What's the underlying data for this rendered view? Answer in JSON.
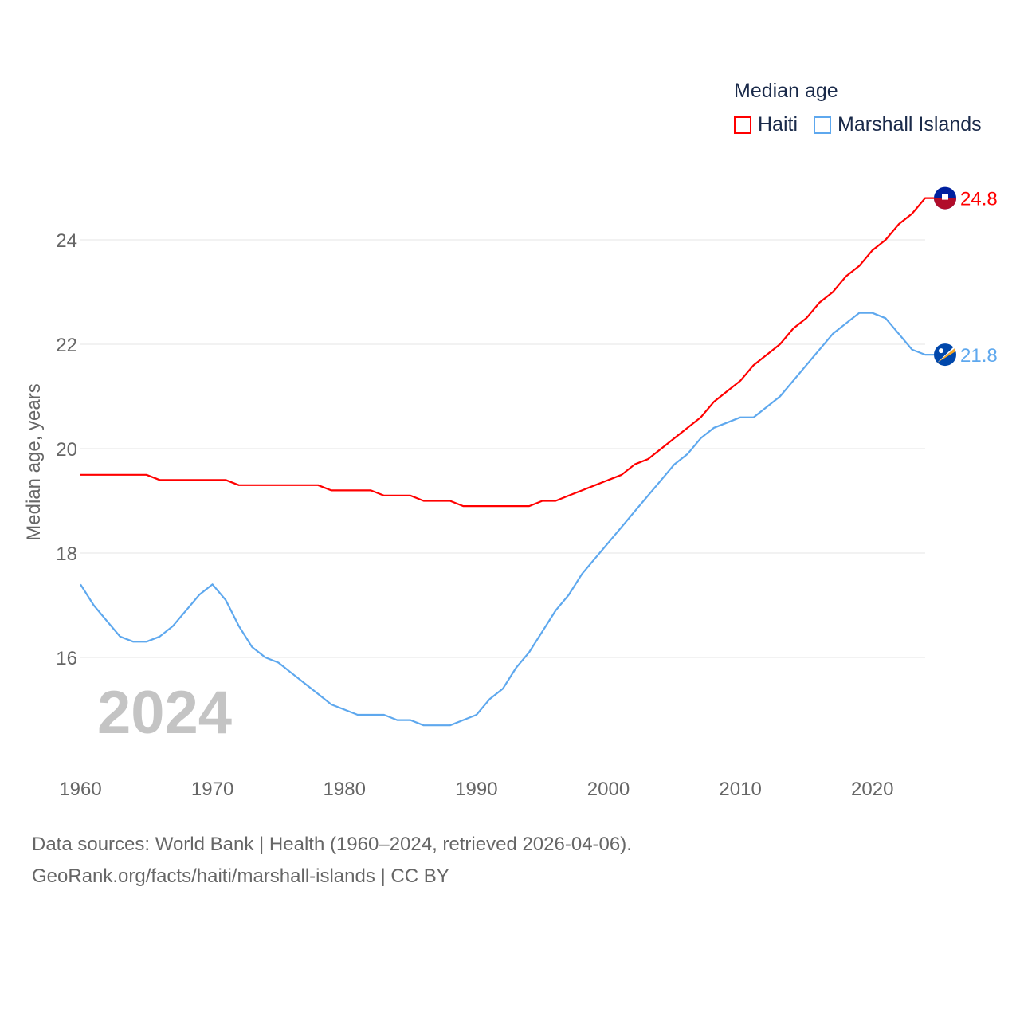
{
  "chart_data": {
    "type": "line",
    "title": "",
    "xlabel": "",
    "ylabel": "Median age, years",
    "xlim": [
      1960,
      2024
    ],
    "ylim": [
      14.0,
      25.5
    ],
    "x_ticks": [
      "1960",
      "1970",
      "1980",
      "1990",
      "2000",
      "2010",
      "2020"
    ],
    "y_ticks": [
      "16",
      "18",
      "20",
      "22",
      "24"
    ],
    "grid": true,
    "legend_title": "Median age",
    "legend_position": "top-right",
    "watermark_year": "2024",
    "x": [
      1960,
      1961,
      1962,
      1963,
      1964,
      1965,
      1966,
      1967,
      1968,
      1969,
      1970,
      1971,
      1972,
      1973,
      1974,
      1975,
      1976,
      1977,
      1978,
      1979,
      1980,
      1981,
      1982,
      1983,
      1984,
      1985,
      1986,
      1987,
      1988,
      1989,
      1990,
      1991,
      1992,
      1993,
      1994,
      1995,
      1996,
      1997,
      1998,
      1999,
      2000,
      2001,
      2002,
      2003,
      2004,
      2005,
      2006,
      2007,
      2008,
      2009,
      2010,
      2011,
      2012,
      2013,
      2014,
      2015,
      2016,
      2017,
      2018,
      2019,
      2020,
      2021,
      2022,
      2023,
      2024
    ],
    "series": [
      {
        "name": "Haiti",
        "color": "#ff0000",
        "end_label": "24.8",
        "values": [
          19.5,
          19.5,
          19.5,
          19.5,
          19.5,
          19.5,
          19.4,
          19.4,
          19.4,
          19.4,
          19.4,
          19.4,
          19.3,
          19.3,
          19.3,
          19.3,
          19.3,
          19.3,
          19.3,
          19.2,
          19.2,
          19.2,
          19.2,
          19.1,
          19.1,
          19.1,
          19.0,
          19.0,
          19.0,
          18.9,
          18.9,
          18.9,
          18.9,
          18.9,
          18.9,
          19.0,
          19.0,
          19.1,
          19.2,
          19.3,
          19.4,
          19.5,
          19.7,
          19.8,
          20.0,
          20.2,
          20.4,
          20.6,
          20.9,
          21.1,
          21.3,
          21.6,
          21.8,
          22.0,
          22.3,
          22.5,
          22.8,
          23.0,
          23.3,
          23.5,
          23.8,
          24.0,
          24.3,
          24.5,
          24.8
        ]
      },
      {
        "name": "Marshall Islands",
        "color": "#5ea8ee",
        "end_label": "21.8",
        "values": [
          17.4,
          17.0,
          16.7,
          16.4,
          16.3,
          16.3,
          16.4,
          16.6,
          16.9,
          17.2,
          17.4,
          17.1,
          16.6,
          16.2,
          16.0,
          15.9,
          15.7,
          15.5,
          15.3,
          15.1,
          15.0,
          14.9,
          14.9,
          14.9,
          14.8,
          14.8,
          14.7,
          14.7,
          14.7,
          14.8,
          14.9,
          15.2,
          15.4,
          15.8,
          16.1,
          16.5,
          16.9,
          17.2,
          17.6,
          17.9,
          18.2,
          18.5,
          18.8,
          19.1,
          19.4,
          19.7,
          19.9,
          20.2,
          20.4,
          20.5,
          20.6,
          20.6,
          20.8,
          21.0,
          21.3,
          21.6,
          21.9,
          22.2,
          22.4,
          22.6,
          22.6,
          22.5,
          22.2,
          21.9,
          21.8
        ]
      }
    ]
  },
  "source": {
    "line1": "Data sources: World Bank | Health (1960–2024, retrieved 2026-04-06).",
    "line2": "GeoRank.org/facts/haiti/marshall-islands | CC BY"
  }
}
